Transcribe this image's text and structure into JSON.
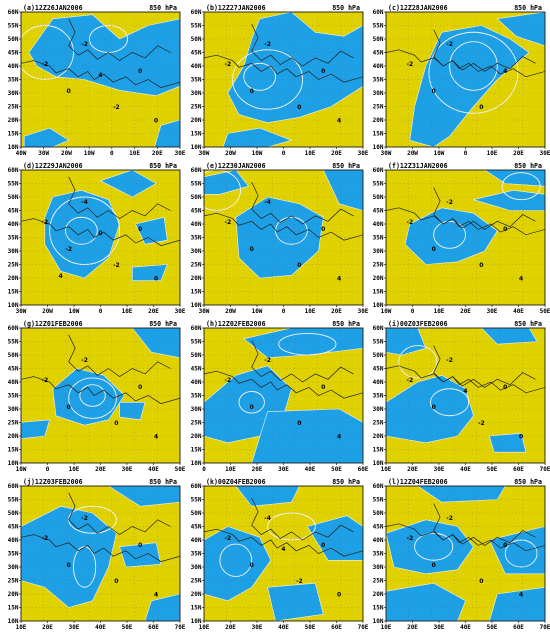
{
  "figure": {
    "panels": [
      {
        "id": "a",
        "title": "(a)12Z26JAN2006",
        "level": "850 hPa",
        "lon_ticks": [
          "40W",
          "30W",
          "20W",
          "10W",
          "0",
          "10E",
          "20E",
          "30E"
        ],
        "lat_ticks": [
          "10N",
          "15N",
          "20N",
          "25N",
          "30N",
          "35N",
          "40N",
          "45N",
          "50N",
          "55N",
          "60N"
        ],
        "contour_labels": [
          "-2",
          "-2",
          "-2",
          "0",
          "0",
          "0",
          "4"
        ]
      },
      {
        "id": "b",
        "title": "(b)12Z27JAN2006",
        "level": "850 hPa",
        "lon_ticks": [
          "30W",
          "20W",
          "10W",
          "0",
          "10E",
          "20E",
          "30E"
        ],
        "lat_ticks": [
          "10N",
          "15N",
          "20N",
          "25N",
          "30N",
          "35N",
          "40N",
          "45N",
          "50N",
          "55N",
          "60N"
        ],
        "contour_labels": [
          "-2",
          "-2",
          "0",
          "0",
          "0",
          "4"
        ]
      },
      {
        "id": "c",
        "title": "(c)12Z28JAN2006",
        "level": "850 hPa",
        "lon_ticks": [
          "30W",
          "20W",
          "10W",
          "0",
          "10E",
          "20E",
          "30E"
        ],
        "lat_ticks": [
          "10N",
          "15N",
          "20N",
          "25N",
          "30N",
          "35N",
          "40N",
          "45N",
          "50N",
          "55N",
          "60N"
        ],
        "contour_labels": [
          "-2",
          "-2",
          "0",
          "0",
          "4"
        ]
      },
      {
        "id": "d",
        "title": "(d)12Z29JAN2006",
        "level": "850 hPa",
        "lon_ticks": [
          "30W",
          "20W",
          "10W",
          "0",
          "10E",
          "20E",
          "30E"
        ],
        "lat_ticks": [
          "10N",
          "15N",
          "20N",
          "25N",
          "30N",
          "35N",
          "40N",
          "45N",
          "50N",
          "55N",
          "60N"
        ],
        "contour_labels": [
          "-4",
          "-2",
          "-2",
          "-2",
          "0",
          "0",
          "0",
          "4"
        ]
      },
      {
        "id": "e",
        "title": "(e)12Z30JAN2006",
        "level": "850 hPa",
        "lon_ticks": [
          "30W",
          "20W",
          "10W",
          "0",
          "10E",
          "20E",
          "30E"
        ],
        "lat_ticks": [
          "10N",
          "15N",
          "20N",
          "25N",
          "30N",
          "35N",
          "40N",
          "45N",
          "50N",
          "55N",
          "60N"
        ],
        "contour_labels": [
          "-4",
          "-2",
          "0",
          "0",
          "0",
          "4"
        ]
      },
      {
        "id": "f",
        "title": "(f)12Z31JAN2006",
        "level": "850 hPa",
        "lon_ticks": [
          "10W",
          "0",
          "10E",
          "20E",
          "30E",
          "40E",
          "50E"
        ],
        "lat_ticks": [
          "10N",
          "15N",
          "20N",
          "25N",
          "30N",
          "35N",
          "40N",
          "45N",
          "50N",
          "55N",
          "60N"
        ],
        "contour_labels": [
          "-2",
          "-2",
          "0",
          "0",
          "0",
          "4"
        ]
      },
      {
        "id": "g",
        "title": "(g)12Z01FEB2006",
        "level": "850 hPa",
        "lon_ticks": [
          "10W",
          "0",
          "10E",
          "20E",
          "30E",
          "40E",
          "50E"
        ],
        "lat_ticks": [
          "10N",
          "15N",
          "20N",
          "25N",
          "30N",
          "35N",
          "40N",
          "45N",
          "50N",
          "55N",
          "60N"
        ],
        "contour_labels": [
          "-2",
          "-2",
          "0",
          "0",
          "0",
          "4"
        ]
      },
      {
        "id": "h",
        "title": "(h)12Z02FEB2006",
        "level": "850 hPa",
        "lon_ticks": [
          "0",
          "10E",
          "20E",
          "30E",
          "40E",
          "50E",
          "60E"
        ],
        "lat_ticks": [
          "10N",
          "15N",
          "20N",
          "25N",
          "30N",
          "35N",
          "40N",
          "45N",
          "50N",
          "55N",
          "60N"
        ],
        "contour_labels": [
          "-2",
          "-2",
          "0",
          "0",
          "0",
          "4"
        ]
      },
      {
        "id": "i",
        "title": "(i)00Z03FEB2006",
        "level": "850 hPa",
        "lon_ticks": [
          "10E",
          "20E",
          "30E",
          "40E",
          "50E",
          "60E",
          "70E"
        ],
        "lat_ticks": [
          "10N",
          "15N",
          "20N",
          "25N",
          "30N",
          "35N",
          "40N",
          "45N",
          "50N",
          "55N",
          "60N"
        ],
        "contour_labels": [
          "-2",
          "-2",
          "-2",
          "0",
          "0",
          "0",
          "4"
        ]
      },
      {
        "id": "j",
        "title": "(j)12Z03FEB2006",
        "level": "850 hPa",
        "lon_ticks": [
          "10E",
          "20E",
          "30E",
          "40E",
          "50E",
          "60E",
          "70E"
        ],
        "lat_ticks": [
          "10N",
          "15N",
          "20N",
          "25N",
          "30N",
          "35N",
          "40N",
          "45N",
          "50N",
          "55N",
          "60N"
        ],
        "contour_labels": [
          "-2",
          "-2",
          "0",
          "0",
          "0",
          "4"
        ]
      },
      {
        "id": "k",
        "title": "(k)00Z04FEB2006",
        "level": "850 hPa",
        "lon_ticks": [
          "10E",
          "20E",
          "30E",
          "40E",
          "50E",
          "60E",
          "70E"
        ],
        "lat_ticks": [
          "10N",
          "15N",
          "20N",
          "25N",
          "30N",
          "35N",
          "40N",
          "45N",
          "50N",
          "55N",
          "60N"
        ],
        "contour_labels": [
          "-4",
          "-2",
          "-2",
          "0",
          "0",
          "0",
          "4"
        ]
      },
      {
        "id": "l",
        "title": "(l)12Z04FEB2006",
        "level": "850 hPa",
        "lon_ticks": [
          "10E",
          "20E",
          "30E",
          "40E",
          "50E",
          "60E",
          "70E"
        ],
        "lat_ticks": [
          "10N",
          "15N",
          "20N",
          "25N",
          "30N",
          "35N",
          "40N",
          "45N",
          "50N",
          "55N",
          "60N"
        ],
        "contour_labels": [
          "-2",
          "-2",
          "0",
          "0",
          "0",
          "4"
        ]
      }
    ]
  },
  "colors": {
    "positive_fill": "#e0d200",
    "negative_fill": "#1ea0e6",
    "background": "#ffffff",
    "contour_line": "#f2f2f2",
    "coastline": "#202020",
    "grid_dots": "#555555"
  }
}
